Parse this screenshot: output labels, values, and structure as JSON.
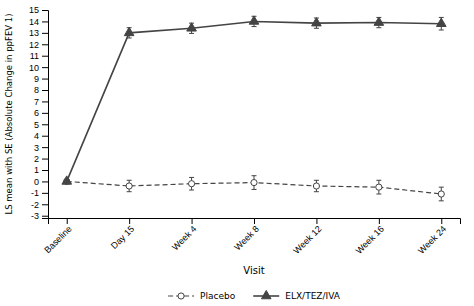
{
  "chart_data": {
    "type": "line",
    "categories": [
      "Baseline",
      "Day 15",
      "Week 4",
      "Week 8",
      "Week 12",
      "Week 16",
      "Week 24"
    ],
    "series": [
      {
        "name": "Placebo",
        "color": "#444444",
        "marker": "open-circle",
        "line_style": "dashed",
        "values": [
          0.0,
          -0.4,
          -0.2,
          -0.1,
          -0.4,
          -0.5,
          -1.1
        ],
        "errors": [
          0.15,
          0.5,
          0.55,
          0.6,
          0.5,
          0.6,
          0.6
        ]
      },
      {
        "name": "ELX/TEZ/IVA",
        "color": "#444444",
        "marker": "triangle",
        "line_style": "solid",
        "values": [
          0.0,
          13.0,
          13.4,
          14.0,
          13.85,
          13.9,
          13.8
        ],
        "errors": [
          0.15,
          0.45,
          0.45,
          0.45,
          0.45,
          0.45,
          0.55
        ]
      }
    ],
    "xlabel": "Visit",
    "ylabel": "LS mean with SE (Absolute Change in ppFEV 1)",
    "ylim": [
      -3.2,
      15
    ],
    "yticks": [
      -3,
      -2,
      -1,
      0,
      1,
      2,
      3,
      4,
      5,
      6,
      7,
      8,
      9,
      10,
      11,
      12,
      13,
      14,
      15
    ],
    "grid": false,
    "legend": "bottom"
  }
}
